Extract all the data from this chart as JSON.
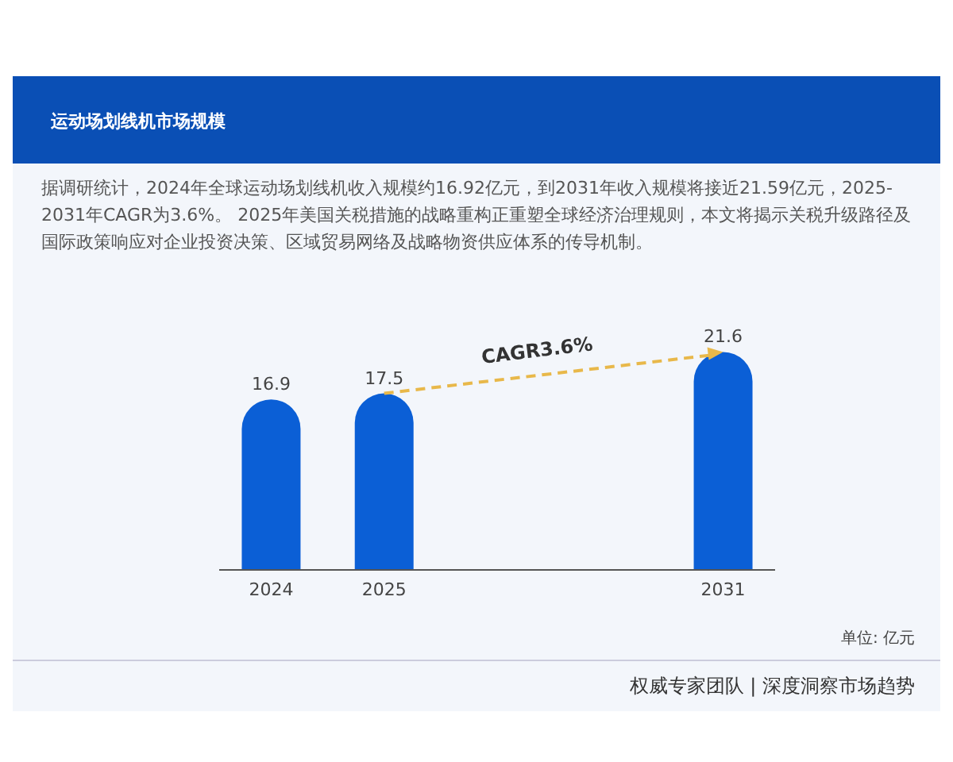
{
  "chart_data": {
    "type": "bar",
    "title": "运动场划线机市场规模",
    "subtitle": "据调研统计，2024年全球运动场划线机收入规模约16.92亿元，到2031年收入规模将接近21.59亿元，2025-2031年CAGR为3.6%。 2025年美国关税措施的战略重构正重塑全球经济治理规则，本文将揭示关税升级路径及国际政策响应对企业投资决策、区域贸易网络及战略物资供应体系的传导机制。",
    "categories": [
      "2024",
      "2025",
      null,
      null,
      "2031"
    ],
    "values": [
      16.9,
      17.5,
      null,
      null,
      21.6
    ],
    "color": "#0b5fd6",
    "data_labels": true,
    "annotations": [
      "CAGR3.6%",
      "单位: 亿元",
      "权威专家团队 | 深度洞察市场趋势"
    ]
  }
}
